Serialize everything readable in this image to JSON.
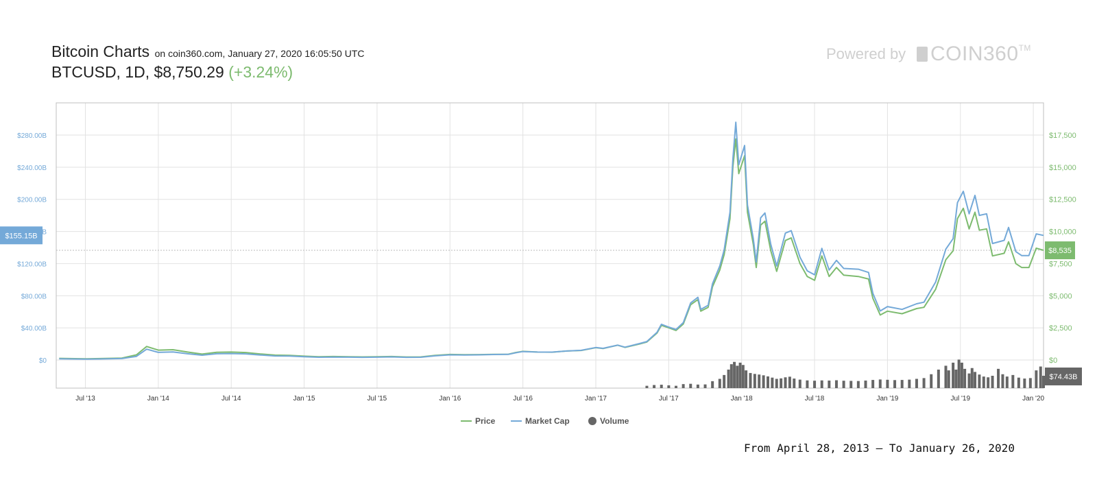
{
  "header": {
    "title": "Bitcoin Charts",
    "subtitle": "on coin360.com, January 27, 2020 16:05:50 UTC",
    "pair": "BTCUSD, 1D, $8,750.29",
    "change": "(+3.24%)",
    "powered_by": "Powered by",
    "logo": "COIN360",
    "logo_tm": "TM"
  },
  "footer": {
    "range": "From April 28, 2013 – To January 26, 2020"
  },
  "chart_data": {
    "type": "line",
    "x_ticks": [
      "Jul '13",
      "Jan '14",
      "Jul '14",
      "Jan '15",
      "Jul '15",
      "Jan '16",
      "Jul '16",
      "Jan '17",
      "Jul '17",
      "Jan '18",
      "Jul '18",
      "Jan '19",
      "Jul '19",
      "Jan '20"
    ],
    "left_axis": {
      "label": "Market Cap",
      "ticks": [
        "$0",
        "$40.00B",
        "$80.00B",
        "$120.00B",
        "$160.00B",
        "$200.00B",
        "$240.00B",
        "$280.00B"
      ],
      "range": [
        0,
        280
      ]
    },
    "right_axis": {
      "label": "Price",
      "ticks": [
        "$0",
        "$2,500",
        "$5,000",
        "$7,500",
        "$10,000",
        "$12,500",
        "$15,000",
        "$17,500"
      ],
      "range": [
        0,
        17500
      ]
    },
    "current_markers": {
      "market_cap": "$155.15B",
      "price": "$8,535",
      "volume": "$74.43B"
    },
    "legend": [
      {
        "name": "Price",
        "color": "#7dbb6f",
        "kind": "line"
      },
      {
        "name": "Market Cap",
        "color": "#74a9d8",
        "kind": "line"
      },
      {
        "name": "Volume",
        "color": "#666666",
        "kind": "dot"
      }
    ],
    "legend_position": "bottom",
    "grid": true,
    "x_range": [
      2013.3,
      2020.07
    ],
    "series": [
      {
        "name": "Price",
        "color": "#7dbb6f",
        "points": [
          [
            2013.32,
            130
          ],
          [
            2013.5,
            90
          ],
          [
            2013.6,
            110
          ],
          [
            2013.75,
            150
          ],
          [
            2013.85,
            400
          ],
          [
            2013.92,
            1050
          ],
          [
            2014.0,
            770
          ],
          [
            2014.1,
            800
          ],
          [
            2014.2,
            620
          ],
          [
            2014.3,
            460
          ],
          [
            2014.4,
            600
          ],
          [
            2014.5,
            620
          ],
          [
            2014.6,
            580
          ],
          [
            2014.7,
            470
          ],
          [
            2014.8,
            380
          ],
          [
            2014.9,
            360
          ],
          [
            2015.0,
            300
          ],
          [
            2015.1,
            250
          ],
          [
            2015.2,
            270
          ],
          [
            2015.4,
            240
          ],
          [
            2015.5,
            250
          ],
          [
            2015.6,
            270
          ],
          [
            2015.7,
            235
          ],
          [
            2015.8,
            240
          ],
          [
            2015.9,
            360
          ],
          [
            2016.0,
            430
          ],
          [
            2016.1,
            410
          ],
          [
            2016.2,
            420
          ],
          [
            2016.3,
            440
          ],
          [
            2016.4,
            450
          ],
          [
            2016.45,
            580
          ],
          [
            2016.5,
            670
          ],
          [
            2016.6,
            620
          ],
          [
            2016.7,
            610
          ],
          [
            2016.8,
            700
          ],
          [
            2016.9,
            740
          ],
          [
            2017.0,
            960
          ],
          [
            2017.05,
            890
          ],
          [
            2017.15,
            1150
          ],
          [
            2017.2,
            980
          ],
          [
            2017.3,
            1250
          ],
          [
            2017.35,
            1400
          ],
          [
            2017.42,
            2100
          ],
          [
            2017.45,
            2700
          ],
          [
            2017.5,
            2500
          ],
          [
            2017.55,
            2300
          ],
          [
            2017.6,
            2800
          ],
          [
            2017.65,
            4300
          ],
          [
            2017.7,
            4700
          ],
          [
            2017.72,
            3800
          ],
          [
            2017.77,
            4100
          ],
          [
            2017.8,
            5700
          ],
          [
            2017.85,
            7000
          ],
          [
            2017.88,
            8200
          ],
          [
            2017.92,
            11000
          ],
          [
            2017.94,
            15000
          ],
          [
            2017.96,
            17200
          ],
          [
            2017.98,
            14500
          ],
          [
            2018.02,
            15900
          ],
          [
            2018.04,
            11500
          ],
          [
            2018.08,
            9000
          ],
          [
            2018.1,
            7200
          ],
          [
            2018.13,
            10500
          ],
          [
            2018.16,
            10800
          ],
          [
            2018.2,
            8500
          ],
          [
            2018.24,
            6900
          ],
          [
            2018.3,
            9300
          ],
          [
            2018.34,
            9500
          ],
          [
            2018.4,
            7500
          ],
          [
            2018.45,
            6500
          ],
          [
            2018.5,
            6200
          ],
          [
            2018.55,
            8100
          ],
          [
            2018.6,
            6500
          ],
          [
            2018.65,
            7200
          ],
          [
            2018.7,
            6600
          ],
          [
            2018.8,
            6500
          ],
          [
            2018.87,
            6300
          ],
          [
            2018.9,
            4800
          ],
          [
            2018.95,
            3500
          ],
          [
            2019.0,
            3800
          ],
          [
            2019.1,
            3600
          ],
          [
            2019.2,
            4000
          ],
          [
            2019.25,
            4100
          ],
          [
            2019.33,
            5500
          ],
          [
            2019.4,
            7800
          ],
          [
            2019.45,
            8500
          ],
          [
            2019.48,
            11000
          ],
          [
            2019.52,
            11800
          ],
          [
            2019.56,
            10200
          ],
          [
            2019.6,
            11500
          ],
          [
            2019.63,
            10100
          ],
          [
            2019.68,
            10200
          ],
          [
            2019.72,
            8100
          ],
          [
            2019.8,
            8300
          ],
          [
            2019.83,
            9200
          ],
          [
            2019.88,
            7500
          ],
          [
            2019.92,
            7200
          ],
          [
            2019.97,
            7200
          ],
          [
            2020.02,
            8700
          ],
          [
            2020.07,
            8535
          ]
        ]
      },
      {
        "name": "Market Cap",
        "color": "#74a9d8",
        "points": [
          [
            2013.32,
            1.5
          ],
          [
            2013.5,
            1.0
          ],
          [
            2013.6,
            1.3
          ],
          [
            2013.75,
            1.8
          ],
          [
            2013.85,
            4.5
          ],
          [
            2013.92,
            13.5
          ],
          [
            2014.0,
            9.5
          ],
          [
            2014.1,
            10.0
          ],
          [
            2014.2,
            7.8
          ],
          [
            2014.3,
            6.0
          ],
          [
            2014.4,
            7.8
          ],
          [
            2014.5,
            8.0
          ],
          [
            2014.6,
            7.6
          ],
          [
            2014.7,
            6.2
          ],
          [
            2014.8,
            5.0
          ],
          [
            2014.9,
            4.9
          ],
          [
            2015.0,
            4.1
          ],
          [
            2015.1,
            3.4
          ],
          [
            2015.2,
            3.7
          ],
          [
            2015.4,
            3.3
          ],
          [
            2015.5,
            3.5
          ],
          [
            2015.6,
            3.8
          ],
          [
            2015.7,
            3.3
          ],
          [
            2015.8,
            3.4
          ],
          [
            2015.9,
            5.2
          ],
          [
            2016.0,
            6.4
          ],
          [
            2016.1,
            6.2
          ],
          [
            2016.2,
            6.4
          ],
          [
            2016.3,
            6.8
          ],
          [
            2016.4,
            7.0
          ],
          [
            2016.45,
            9.0
          ],
          [
            2016.5,
            10.5
          ],
          [
            2016.6,
            9.9
          ],
          [
            2016.7,
            9.8
          ],
          [
            2016.8,
            11.2
          ],
          [
            2016.9,
            12.0
          ],
          [
            2017.0,
            15.5
          ],
          [
            2017.05,
            14.5
          ],
          [
            2017.15,
            18.5
          ],
          [
            2017.2,
            16.0
          ],
          [
            2017.3,
            20.5
          ],
          [
            2017.35,
            23.0
          ],
          [
            2017.42,
            34.5
          ],
          [
            2017.45,
            44.5
          ],
          [
            2017.5,
            41.0
          ],
          [
            2017.55,
            38.0
          ],
          [
            2017.6,
            46.5
          ],
          [
            2017.65,
            71.0
          ],
          [
            2017.7,
            78.0
          ],
          [
            2017.72,
            63.0
          ],
          [
            2017.77,
            68.0
          ],
          [
            2017.8,
            95.0
          ],
          [
            2017.85,
            117.0
          ],
          [
            2017.88,
            137.0
          ],
          [
            2017.92,
            184.0
          ],
          [
            2017.94,
            250.0
          ],
          [
            2017.96,
            296.0
          ],
          [
            2017.98,
            243.0
          ],
          [
            2018.02,
            267.0
          ],
          [
            2018.04,
            193.0
          ],
          [
            2018.08,
            151.0
          ],
          [
            2018.1,
            122.0
          ],
          [
            2018.13,
            177.0
          ],
          [
            2018.16,
            183.0
          ],
          [
            2018.2,
            144.0
          ],
          [
            2018.24,
            117.0
          ],
          [
            2018.3,
            158.0
          ],
          [
            2018.34,
            161.0
          ],
          [
            2018.4,
            128.0
          ],
          [
            2018.45,
            111.0
          ],
          [
            2018.5,
            106.0
          ],
          [
            2018.55,
            139.0
          ],
          [
            2018.6,
            112.0
          ],
          [
            2018.65,
            124.0
          ],
          [
            2018.7,
            114.0
          ],
          [
            2018.8,
            113.0
          ],
          [
            2018.87,
            109.0
          ],
          [
            2018.9,
            83.0
          ],
          [
            2018.95,
            61.0
          ],
          [
            2019.0,
            66.5
          ],
          [
            2019.1,
            63.0
          ],
          [
            2019.2,
            70.0
          ],
          [
            2019.25,
            72.0
          ],
          [
            2019.33,
            97.0
          ],
          [
            2019.4,
            138.0
          ],
          [
            2019.45,
            151.0
          ],
          [
            2019.48,
            196.0
          ],
          [
            2019.52,
            210.0
          ],
          [
            2019.56,
            182.0
          ],
          [
            2019.6,
            205.0
          ],
          [
            2019.63,
            180.0
          ],
          [
            2019.68,
            182.0
          ],
          [
            2019.72,
            145.0
          ],
          [
            2019.8,
            149.0
          ],
          [
            2019.83,
            165.0
          ],
          [
            2019.88,
            135.0
          ],
          [
            2019.92,
            130.0
          ],
          [
            2019.97,
            130.0
          ],
          [
            2020.02,
            157.0
          ],
          [
            2020.07,
            155.15
          ]
        ]
      },
      {
        "name": "Volume",
        "color": "#666666",
        "points": [
          [
            2017.35,
            1.5
          ],
          [
            2017.4,
            2.0
          ],
          [
            2017.45,
            2.2
          ],
          [
            2017.5,
            1.8
          ],
          [
            2017.55,
            1.5
          ],
          [
            2017.6,
            2.6
          ],
          [
            2017.65,
            2.8
          ],
          [
            2017.7,
            2.3
          ],
          [
            2017.75,
            2.4
          ],
          [
            2017.8,
            4.5
          ],
          [
            2017.85,
            6.0
          ],
          [
            2017.88,
            8.5
          ],
          [
            2017.91,
            12.0
          ],
          [
            2017.93,
            15.5
          ],
          [
            2017.95,
            17.0
          ],
          [
            2017.97,
            14.5
          ],
          [
            2017.99,
            16.5
          ],
          [
            2018.01,
            15.0
          ],
          [
            2018.03,
            11.5
          ],
          [
            2018.06,
            9.8
          ],
          [
            2018.09,
            9.2
          ],
          [
            2018.12,
            8.8
          ],
          [
            2018.15,
            8.3
          ],
          [
            2018.18,
            7.6
          ],
          [
            2018.21,
            6.8
          ],
          [
            2018.24,
            6.0
          ],
          [
            2018.27,
            6.3
          ],
          [
            2018.3,
            7.0
          ],
          [
            2018.33,
            7.4
          ],
          [
            2018.36,
            6.2
          ],
          [
            2018.4,
            5.5
          ],
          [
            2018.45,
            5.0
          ],
          [
            2018.5,
            4.8
          ],
          [
            2018.55,
            5.0
          ],
          [
            2018.6,
            4.9
          ],
          [
            2018.65,
            5.1
          ],
          [
            2018.7,
            4.8
          ],
          [
            2018.75,
            4.7
          ],
          [
            2018.8,
            4.6
          ],
          [
            2018.85,
            4.9
          ],
          [
            2018.9,
            5.3
          ],
          [
            2018.95,
            5.6
          ],
          [
            2019.0,
            5.4
          ],
          [
            2019.05,
            5.2
          ],
          [
            2019.1,
            5.3
          ],
          [
            2019.15,
            5.5
          ],
          [
            2019.2,
            6.0
          ],
          [
            2019.25,
            6.5
          ],
          [
            2019.3,
            9.0
          ],
          [
            2019.35,
            12.0
          ],
          [
            2019.4,
            14.5
          ],
          [
            2019.42,
            11.5
          ],
          [
            2019.45,
            16.5
          ],
          [
            2019.47,
            12.0
          ],
          [
            2019.49,
            18.5
          ],
          [
            2019.51,
            16.5
          ],
          [
            2019.53,
            12.5
          ],
          [
            2019.56,
            9.5
          ],
          [
            2019.58,
            13.0
          ],
          [
            2019.6,
            10.5
          ],
          [
            2019.63,
            8.8
          ],
          [
            2019.66,
            7.5
          ],
          [
            2019.69,
            7.0
          ],
          [
            2019.72,
            8.0
          ],
          [
            2019.76,
            12.5
          ],
          [
            2019.79,
            9.0
          ],
          [
            2019.82,
            7.5
          ],
          [
            2019.86,
            8.5
          ],
          [
            2019.9,
            6.8
          ],
          [
            2019.94,
            6.2
          ],
          [
            2019.98,
            6.5
          ],
          [
            2020.02,
            11.5
          ],
          [
            2020.05,
            14.0
          ],
          [
            2020.07,
            8.0
          ]
        ]
      }
    ]
  }
}
